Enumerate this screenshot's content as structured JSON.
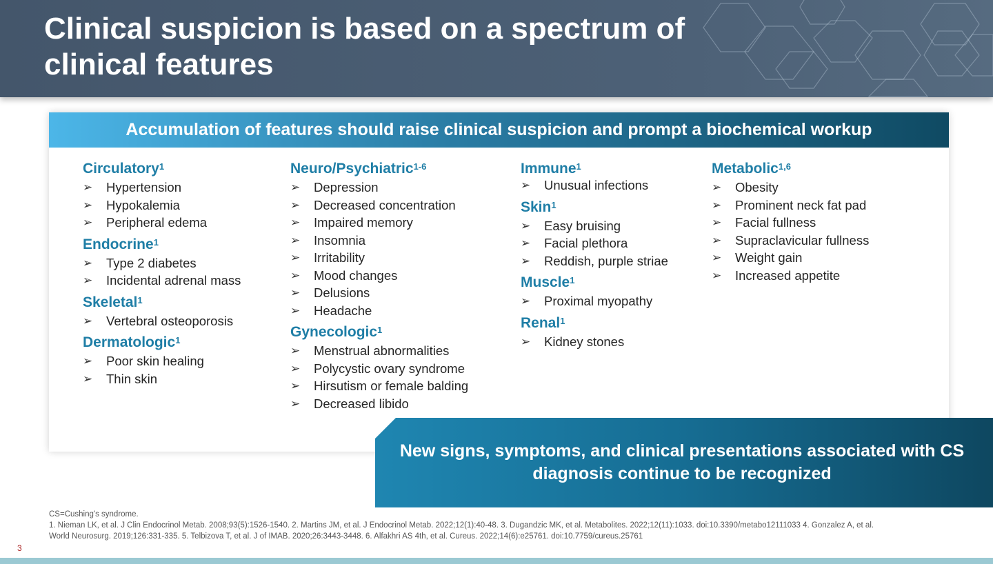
{
  "title": "Clinical suspicion is based on a spectrum of clinical features",
  "banner": "Accumulation of features should raise clinical suspicion and prompt a biochemical workup",
  "columns": [
    [
      {
        "heading": "Circulatory",
        "sup": "1",
        "items": [
          "Hypertension",
          "Hypokalemia",
          "Peripheral edema"
        ]
      },
      {
        "heading": "Endocrine",
        "sup": "1",
        "items": [
          "Type 2 diabetes",
          "Incidental adrenal mass"
        ]
      },
      {
        "heading": "Skeletal",
        "sup": "1",
        "items": [
          "Vertebral osteoporosis"
        ]
      },
      {
        "heading": "Dermatologic",
        "sup": "1",
        "items": [
          "Poor skin healing",
          "Thin skin"
        ]
      }
    ],
    [
      {
        "heading": "Neuro/Psychiatric",
        "sup": "1-6",
        "items": [
          "Depression",
          "Decreased concentration",
          "Impaired memory",
          "Insomnia",
          "Irritability",
          "Mood changes",
          "Delusions",
          "Headache"
        ]
      },
      {
        "heading": "Gynecologic",
        "sup": "1",
        "items": [
          "Menstrual abnormalities",
          "Polycystic ovary syndrome",
          "Hirsutism or female balding",
          "Decreased libido"
        ]
      }
    ],
    [
      {
        "heading": "Immune",
        "sup": "1",
        "items": [
          "Unusual infections"
        ]
      },
      {
        "heading": "Skin",
        "sup": "1",
        "items": [
          "Easy bruising",
          "Facial plethora",
          "Reddish, purple striae"
        ]
      },
      {
        "heading": "Muscle",
        "sup": "1",
        "items": [
          "Proximal myopathy"
        ]
      },
      {
        "heading": "Renal",
        "sup": "1",
        "items": [
          "Kidney stones"
        ]
      }
    ],
    [
      {
        "heading": "Metabolic",
        "sup": "1,6",
        "items": [
          "Obesity",
          "Prominent neck fat pad",
          "Facial fullness",
          "Supraclavicular fullness",
          "Weight gain",
          "Increased appetite"
        ]
      }
    ]
  ],
  "callout": "New signs, symptoms, and clinical presentations associated with CS diagnosis continue to be recognized",
  "footnote": {
    "abbrev": "CS=Cushing's syndrome.",
    "refs": "1. Nieman LK, et al. J Clin Endocrinol Metab. 2008;93(5):1526-1540. 2. Martins JM, et al. J Endocrinol Metab. 2022;12(1):40-48. 3. Dugandzic MK, et al. Metabolites. 2022;12(11):1033. doi:10.3390/metabo12111033 4. Gonzalez A, et al. World Neurosurg. 2019;126:331-335. 5. Telbizova T, et al. J of IMAB. 2020;26:3443-3448. 6. Alfakhri AS 4th, et al. Cureus. 2022;14(6):e25761. doi:10.7759/cureus.25761"
  },
  "page_number": "3"
}
